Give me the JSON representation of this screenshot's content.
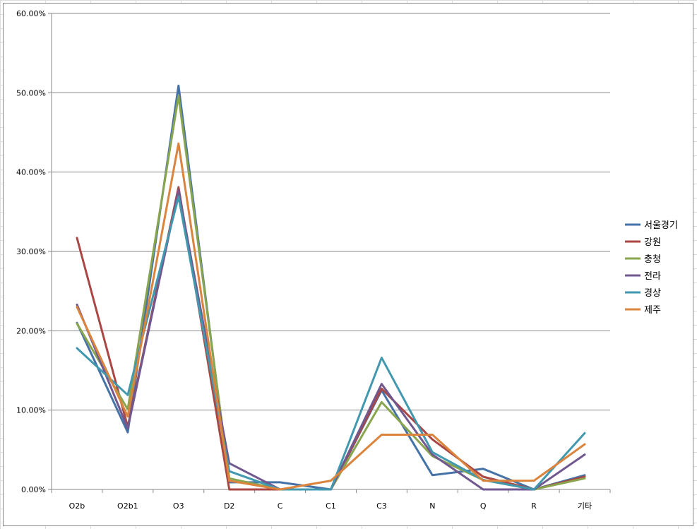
{
  "chart_data": {
    "type": "line",
    "title": "",
    "xlabel": "",
    "ylabel": "",
    "categories": [
      "O2b",
      "O2b1",
      "O3",
      "D2",
      "C",
      "C1",
      "C3",
      "N",
      "Q",
      "R",
      "기타"
    ],
    "ylim": [
      0,
      60
    ],
    "y_ticks": [
      "0.00%",
      "10.00%",
      "20.00%",
      "30.00%",
      "40.00%",
      "50.00%",
      "60.00%"
    ],
    "y_format": "percent",
    "grid": true,
    "legend_position": "right",
    "series": [
      {
        "name": "서울경기",
        "color": "#4572A7",
        "values": [
          21.0,
          7.2,
          50.9,
          0.9,
          0.9,
          0.0,
          12.5,
          1.8,
          2.6,
          0.0,
          1.8
        ]
      },
      {
        "name": "강원",
        "color": "#AA4643",
        "values": [
          31.7,
          7.9,
          38.1,
          0.0,
          0.0,
          0.0,
          12.7,
          6.3,
          1.6,
          0.0,
          1.6
        ]
      },
      {
        "name": "충청",
        "color": "#89A54E",
        "values": [
          20.9,
          10.1,
          49.6,
          1.4,
          0.0,
          0.0,
          11.0,
          4.2,
          1.2,
          0.0,
          1.4
        ]
      },
      {
        "name": "전라",
        "color": "#71588F",
        "values": [
          23.3,
          7.7,
          37.7,
          3.3,
          0.0,
          0.0,
          13.3,
          4.4,
          0.0,
          0.0,
          4.4
        ]
      },
      {
        "name": "경상",
        "color": "#4198AF",
        "values": [
          17.8,
          11.9,
          36.9,
          2.3,
          0.0,
          0.0,
          16.6,
          4.7,
          1.2,
          0.0,
          7.1
        ]
      },
      {
        "name": "제주",
        "color": "#DB843D",
        "values": [
          23.0,
          9.2,
          43.6,
          1.1,
          0.0,
          1.1,
          6.9,
          6.9,
          1.1,
          1.1,
          5.7
        ]
      }
    ]
  }
}
